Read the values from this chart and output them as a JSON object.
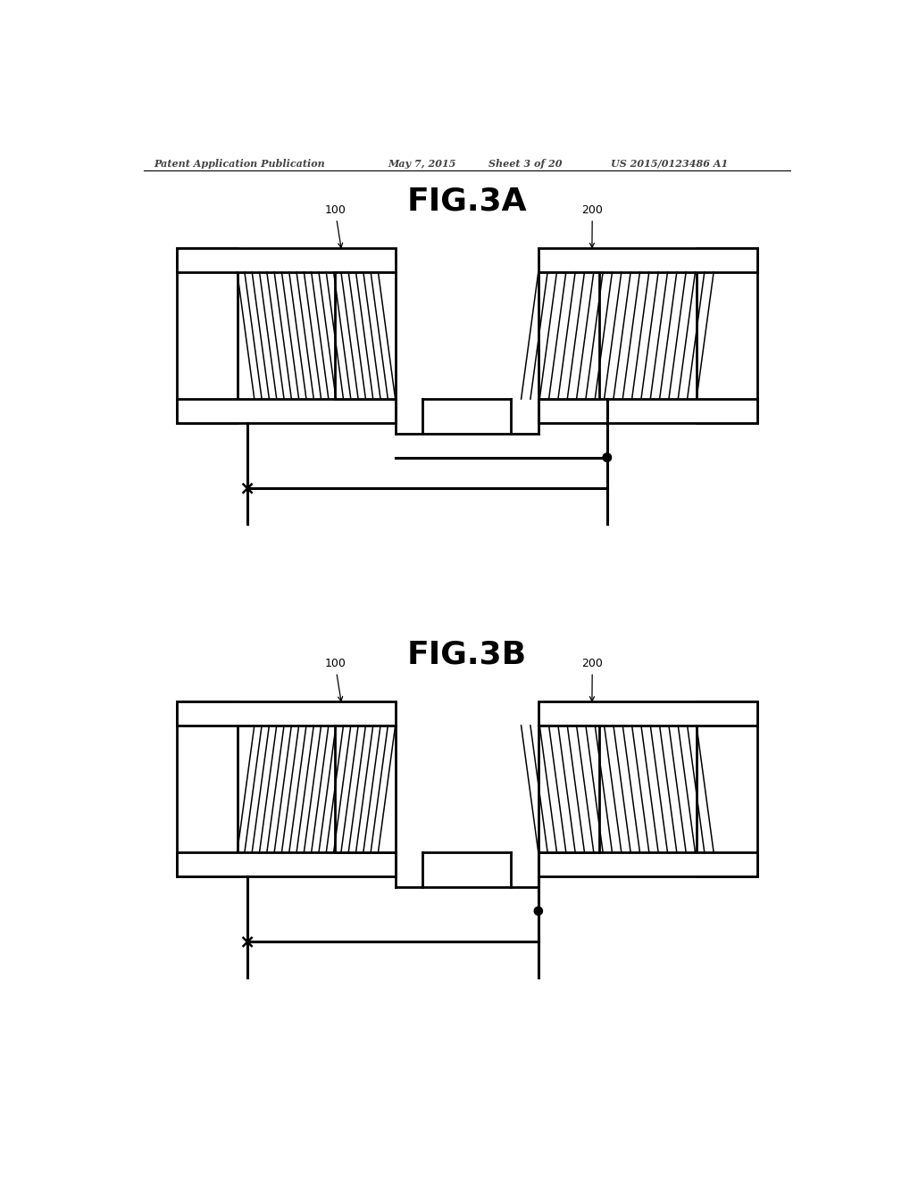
{
  "header_left": "Patent Application Publication",
  "header_mid1": "May 7, 2015",
  "header_mid2": "Sheet 3 of 20",
  "header_right": "US 2015/0123486 A1",
  "fig3a_title": "FIG.3A",
  "fig3b_title": "FIG.3B",
  "label_100": "100",
  "label_200": "200",
  "bg_color": "#ffffff",
  "lc": "#000000",
  "lw_core": 2.0,
  "lw_wire": 2.2,
  "lw_coil": 1.1,
  "n_coil": 20
}
